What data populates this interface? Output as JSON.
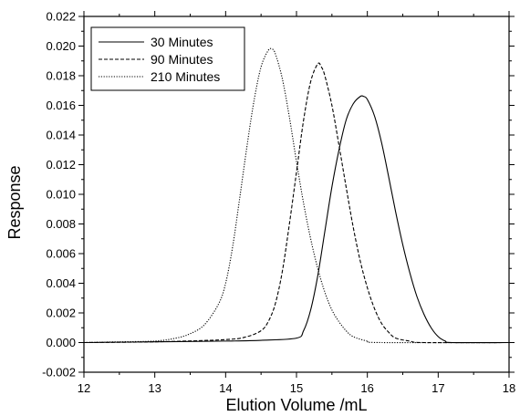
{
  "chart_data": {
    "type": "line",
    "xlabel": "Elution Volume /mL",
    "ylabel": "Response",
    "xlim": [
      12,
      18
    ],
    "ylim": [
      -0.002,
      0.022
    ],
    "x_ticks": [
      12,
      13,
      14,
      15,
      16,
      17,
      18
    ],
    "x_tick_labels": [
      "12",
      "13",
      "14",
      "15",
      "16",
      "17",
      "18"
    ],
    "y_ticks": [
      -0.002,
      0.0,
      0.002,
      0.004,
      0.006,
      0.008,
      0.01,
      0.012,
      0.014,
      0.016,
      0.018,
      0.02,
      0.022
    ],
    "y_tick_labels": [
      "-0.002",
      "0.000",
      "0.002",
      "0.004",
      "0.006",
      "0.008",
      "0.010",
      "0.012",
      "0.014",
      "0.016",
      "0.018",
      "0.020",
      "0.022"
    ],
    "grid": false,
    "legend_position": "top-left",
    "series": [
      {
        "name": "30 Minutes",
        "line_style": "solid",
        "color": "#000000",
        "points": [
          [
            12.0,
            0.0
          ],
          [
            13.0,
            5e-05
          ],
          [
            14.0,
            0.0001
          ],
          [
            14.5,
            0.00015
          ],
          [
            15.0,
            0.0003
          ],
          [
            15.1,
            0.0008
          ],
          [
            15.2,
            0.0022
          ],
          [
            15.3,
            0.0045
          ],
          [
            15.4,
            0.0075
          ],
          [
            15.5,
            0.0105
          ],
          [
            15.6,
            0.013
          ],
          [
            15.7,
            0.015
          ],
          [
            15.8,
            0.0161
          ],
          [
            15.9,
            0.0166
          ],
          [
            15.95,
            0.0166
          ],
          [
            16.0,
            0.0164
          ],
          [
            16.1,
            0.0153
          ],
          [
            16.2,
            0.0135
          ],
          [
            16.3,
            0.0112
          ],
          [
            16.4,
            0.0088
          ],
          [
            16.5,
            0.0066
          ],
          [
            16.6,
            0.0047
          ],
          [
            16.7,
            0.0031
          ],
          [
            16.8,
            0.0019
          ],
          [
            16.9,
            0.001
          ],
          [
            17.0,
            0.0004
          ],
          [
            17.1,
            0.0001
          ],
          [
            17.2,
            0.0
          ],
          [
            18.0,
            0.0
          ]
        ]
      },
      {
        "name": "90 Minutes",
        "line_style": "dashed",
        "color": "#000000",
        "points": [
          [
            12.0,
            0.0
          ],
          [
            13.0,
            5e-05
          ],
          [
            14.0,
            0.0002
          ],
          [
            14.3,
            0.0004
          ],
          [
            14.5,
            0.0008
          ],
          [
            14.6,
            0.0014
          ],
          [
            14.7,
            0.0026
          ],
          [
            14.8,
            0.0048
          ],
          [
            14.9,
            0.008
          ],
          [
            15.0,
            0.0115
          ],
          [
            15.1,
            0.015
          ],
          [
            15.2,
            0.0176
          ],
          [
            15.3,
            0.0188
          ],
          [
            15.35,
            0.0186
          ],
          [
            15.4,
            0.018
          ],
          [
            15.5,
            0.016
          ],
          [
            15.6,
            0.0133
          ],
          [
            15.7,
            0.0105
          ],
          [
            15.8,
            0.0078
          ],
          [
            15.9,
            0.0055
          ],
          [
            16.0,
            0.0037
          ],
          [
            16.1,
            0.0023
          ],
          [
            16.2,
            0.0013
          ],
          [
            16.3,
            0.0007
          ],
          [
            16.4,
            0.0003
          ],
          [
            16.6,
            0.0001
          ],
          [
            16.8,
            0.0
          ],
          [
            18.0,
            0.0
          ]
        ]
      },
      {
        "name": "210 Minutes",
        "line_style": "dotted",
        "color": "#000000",
        "points": [
          [
            12.0,
            0.0
          ],
          [
            12.5,
            5e-05
          ],
          [
            13.0,
            0.0001
          ],
          [
            13.3,
            0.0003
          ],
          [
            13.5,
            0.0006
          ],
          [
            13.7,
            0.0012
          ],
          [
            13.9,
            0.0026
          ],
          [
            14.0,
            0.004
          ],
          [
            14.1,
            0.0065
          ],
          [
            14.2,
            0.0098
          ],
          [
            14.3,
            0.0132
          ],
          [
            14.4,
            0.0163
          ],
          [
            14.5,
            0.0186
          ],
          [
            14.6,
            0.0197
          ],
          [
            14.65,
            0.0198
          ],
          [
            14.7,
            0.0195
          ],
          [
            14.8,
            0.0178
          ],
          [
            14.9,
            0.0152
          ],
          [
            15.0,
            0.0122
          ],
          [
            15.1,
            0.0094
          ],
          [
            15.2,
            0.007
          ],
          [
            15.3,
            0.005
          ],
          [
            15.4,
            0.0034
          ],
          [
            15.5,
            0.0022
          ],
          [
            15.6,
            0.0014
          ],
          [
            15.7,
            0.0008
          ],
          [
            15.8,
            0.0004
          ],
          [
            16.0,
            0.0001
          ],
          [
            16.2,
            0.0
          ],
          [
            18.0,
            0.0
          ]
        ]
      }
    ]
  }
}
